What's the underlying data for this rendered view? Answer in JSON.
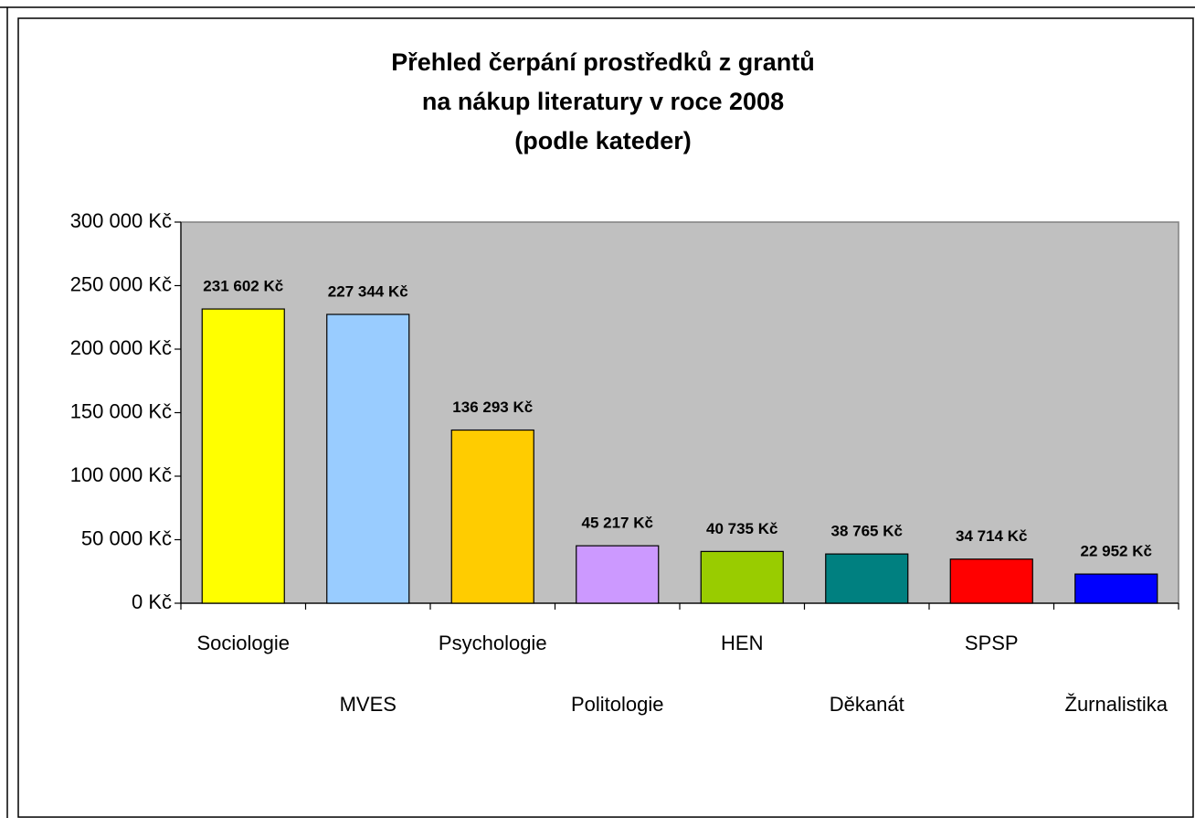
{
  "chart_data": {
    "type": "bar",
    "title": [
      "Přehled čerpání prostředků z grantů",
      "na nákup literatury v roce 2008",
      "(podle kateder)"
    ],
    "categories": [
      "Sociologie",
      "MVES",
      "Psychologie",
      "Politologie",
      "HEN",
      "Děkanát",
      "SPSP",
      "Žurnalistika"
    ],
    "values": [
      231602,
      227344,
      136293,
      45217,
      40735,
      38765,
      34714,
      22952
    ],
    "value_labels": [
      "231 602 Kč",
      "227 344 Kč",
      "136 293 Kč",
      "45 217 Kč",
      "40 735 Kč",
      "38 765 Kč",
      "34 714 Kč",
      "22 952 Kč"
    ],
    "colors": [
      "#ffff00",
      "#99ccff",
      "#ffcc00",
      "#cc99ff",
      "#99cc00",
      "#008080",
      "#ff0000",
      "#0000ff"
    ],
    "ylim": [
      0,
      300000
    ],
    "yticks": [
      {
        "value": 0,
        "label": "0 Kč"
      },
      {
        "value": 50000,
        "label": "50 000 Kč"
      },
      {
        "value": 100000,
        "label": "100 000 Kč"
      },
      {
        "value": 150000,
        "label": "150 000 Kč"
      },
      {
        "value": 200000,
        "label": "200 000 Kč"
      },
      {
        "value": 250000,
        "label": "250 000 Kč"
      },
      {
        "value": 300000,
        "label": "300 000 Kč"
      }
    ],
    "plot_background": "#c0c0c0"
  }
}
